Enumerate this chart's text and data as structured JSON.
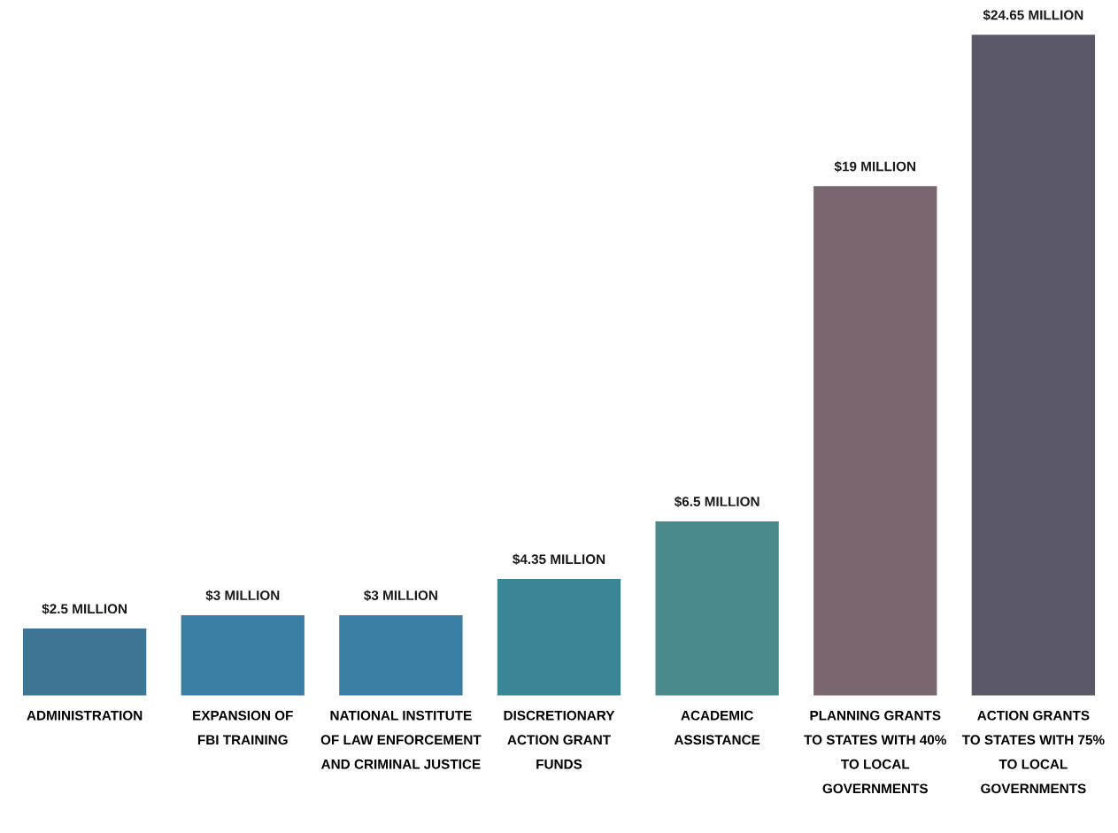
{
  "chart_data": {
    "type": "bar",
    "categories": [
      "ADMINISTRATION",
      "EXPANSION OF\nFBI TRAINING",
      "NATIONAL INSTITUTE\nOF LAW ENFORCEMENT\nAND CRIMINAL JUSTICE",
      "DISCRETIONARY\nACTION GRANT\nFUNDS",
      "ACADEMIC\nASSISTANCE",
      "PLANNING GRANTS\nTO STATES WITH 40%\nTO LOCAL\nGOVERNMENTS",
      "ACTION GRANTS\nTO STATES WITH 75%\nTO LOCAL\nGOVERNMENTS"
    ],
    "values": [
      2.5,
      3,
      3,
      4.35,
      6.5,
      19,
      24.65
    ],
    "colors": [
      "#3e7494",
      "#3a7ea3",
      "#3a7ea3",
      "#3a8596",
      "#4a8a8c",
      "#7a6670",
      "#5a5868"
    ],
    "value_labels": [
      "$2.5 MILLION",
      "$3 MILLION",
      "$3 MILLION",
      "$4.35 MILLION",
      "$6.5 MILLION",
      "$19 MILLION",
      "$24.65 MILLION"
    ],
    "tick_labels": "x",
    "grid": false
  }
}
